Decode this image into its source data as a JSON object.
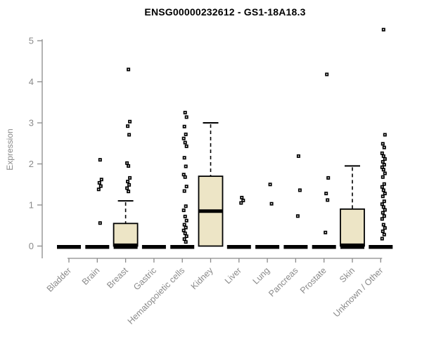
{
  "chart_data": {
    "type": "boxplot",
    "title": "ENSG00000232612 - GS1-18A18.3",
    "ylabel": "Expression",
    "xlabel": "",
    "ylim": [
      0,
      5
    ],
    "yticks": [
      0,
      1,
      2,
      3,
      4,
      5
    ],
    "legend": "none",
    "grid": false,
    "categories": [
      {
        "label": "Bladder",
        "zero_bar": true,
        "box": null,
        "points": []
      },
      {
        "label": "Brain",
        "zero_bar": true,
        "box": null,
        "points": [
          2.1,
          1.62,
          1.54,
          1.46,
          1.38,
          0.56
        ]
      },
      {
        "label": "Breast",
        "zero_bar": true,
        "box": {
          "q1": 0,
          "median": 0.02,
          "q3": 0.55,
          "whisker_low": 0,
          "whisker_high": 1.1
        },
        "points": [
          4.3,
          3.03,
          2.92,
          2.71,
          2.02,
          1.95,
          1.66,
          1.57,
          1.49,
          1.41,
          1.33
        ]
      },
      {
        "label": "Gastric",
        "zero_bar": true,
        "box": null,
        "points": []
      },
      {
        "label": "Hematopoietic cells",
        "zero_bar": true,
        "box": null,
        "points": [
          3.25,
          3.14,
          2.91,
          2.72,
          2.62,
          2.52,
          2.43,
          2.15,
          1.94,
          1.74,
          1.68,
          1.45,
          1.34,
          0.97,
          0.87,
          0.72,
          0.62,
          0.52,
          0.45,
          0.38,
          0.31,
          0.24,
          0.17,
          0.1
        ]
      },
      {
        "label": "Kidney",
        "zero_bar": false,
        "box": {
          "q1": 0,
          "median": 0.85,
          "q3": 1.7,
          "whisker_low": 0,
          "whisker_high": 3.0
        },
        "points": []
      },
      {
        "label": "Liver",
        "zero_bar": true,
        "box": null,
        "points": [
          1.18,
          1.11,
          1.05
        ]
      },
      {
        "label": "Lung",
        "zero_bar": true,
        "box": null,
        "points": [
          1.5,
          1.03
        ]
      },
      {
        "label": "Pancreas",
        "zero_bar": true,
        "box": null,
        "points": [
          2.19,
          1.36,
          0.73
        ]
      },
      {
        "label": "Prostate",
        "zero_bar": true,
        "box": null,
        "points": [
          4.18,
          1.66,
          1.28,
          1.12,
          0.33
        ]
      },
      {
        "label": "Skin",
        "zero_bar": true,
        "box": {
          "q1": 0,
          "median": 0.02,
          "q3": 0.9,
          "whisker_low": 0,
          "whisker_high": 1.95
        },
        "points": []
      },
      {
        "label": "Unknown / Other",
        "zero_bar": true,
        "box": null,
        "points": [
          5.27,
          2.71,
          2.49,
          2.4,
          2.26,
          2.19,
          2.12,
          2.05,
          1.98,
          1.92,
          1.86,
          1.77,
          1.68,
          1.51,
          1.44,
          1.36,
          1.28,
          1.21,
          1.09,
          1.02,
          0.95,
          0.88,
          0.81,
          0.73,
          0.66,
          0.52,
          0.44,
          0.36,
          0.28,
          0.18
        ]
      }
    ],
    "colors": {
      "box_fill": "#EDE5C6",
      "box_border": "#000000",
      "median": "#000000",
      "points": "#000000",
      "axis": "#8a8a8a",
      "tick_labels": "#8a8a8a",
      "title": "#000000",
      "background": "#ffffff"
    }
  }
}
